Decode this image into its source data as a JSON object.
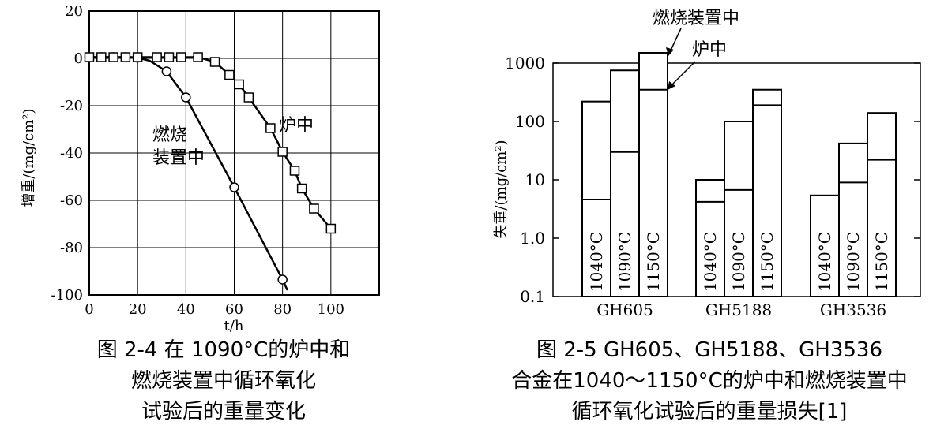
{
  "chart_data": [
    {
      "type": "line",
      "xlabel": "t/h",
      "ylabel": "增重/(mg/cm²)",
      "xlim": [
        0,
        120
      ],
      "ylim": [
        -100,
        20
      ],
      "x_ticks": [
        "0",
        "20",
        "40",
        "60",
        "80",
        "100"
      ],
      "y_ticks": [
        "20",
        "0",
        "-20",
        "-40",
        "-60",
        "-80",
        "-100"
      ],
      "grid": true,
      "series": [
        {
          "name": "燃烧装置中",
          "marker": "circle",
          "x": [
            0,
            5,
            10,
            15,
            20,
            25,
            32,
            40,
            60,
            80,
            82
          ],
          "y": [
            0.5,
            0.5,
            0.5,
            0.5,
            0.3,
            -1,
            -5.5,
            -16.5,
            -54.5,
            -93.5,
            -98
          ]
        },
        {
          "name": "炉中",
          "marker": "square",
          "x": [
            0,
            5,
            10,
            15,
            20,
            28,
            33,
            38,
            45,
            52,
            58,
            62,
            66,
            75,
            80,
            85,
            88,
            93,
            100
          ],
          "y": [
            0.5,
            0.5,
            0.5,
            0.5,
            0.5,
            0.5,
            0.5,
            0.5,
            0.5,
            -1.5,
            -7,
            -11,
            -16.5,
            -29.5,
            -39.5,
            -47.5,
            -55,
            -63.5,
            -72
          ]
        }
      ],
      "caption": [
        "图 2-4  在 1090°C的炉中和",
        "燃烧装置中循环氧化",
        "试验后的重量变化"
      ]
    },
    {
      "type": "bar",
      "scale": "log",
      "ylabel": "失重/(mg/cm²)",
      "ylim": [
        0.1,
        1000
      ],
      "y_ticks": [
        "1000",
        "100",
        "10",
        "1.0",
        "0.1"
      ],
      "groups": [
        "GH605",
        "GH5188",
        "GH3536"
      ],
      "temperatures": [
        "1040°C",
        "1090°C",
        "1150°C"
      ],
      "series": [
        {
          "name": "燃烧装置中",
          "values": [
            [
              220,
              750,
              1500
            ],
            [
              10,
              100,
              350
            ],
            [
              5.4,
              42,
              140
            ]
          ]
        },
        {
          "name": "炉中",
          "values": [
            [
              4.6,
              30,
              350
            ],
            [
              4.2,
              6.7,
              190
            ],
            [
              5.4,
              9,
              22
            ]
          ]
        }
      ],
      "annotations": [
        "燃烧装置中",
        "炉中"
      ],
      "caption": [
        "图 2-5  GH605、GH5188、GH3536",
        "合金在1040～1150°C的炉中和燃烧装置中",
        "循环氧化试验后的重量损失[1]"
      ]
    }
  ]
}
